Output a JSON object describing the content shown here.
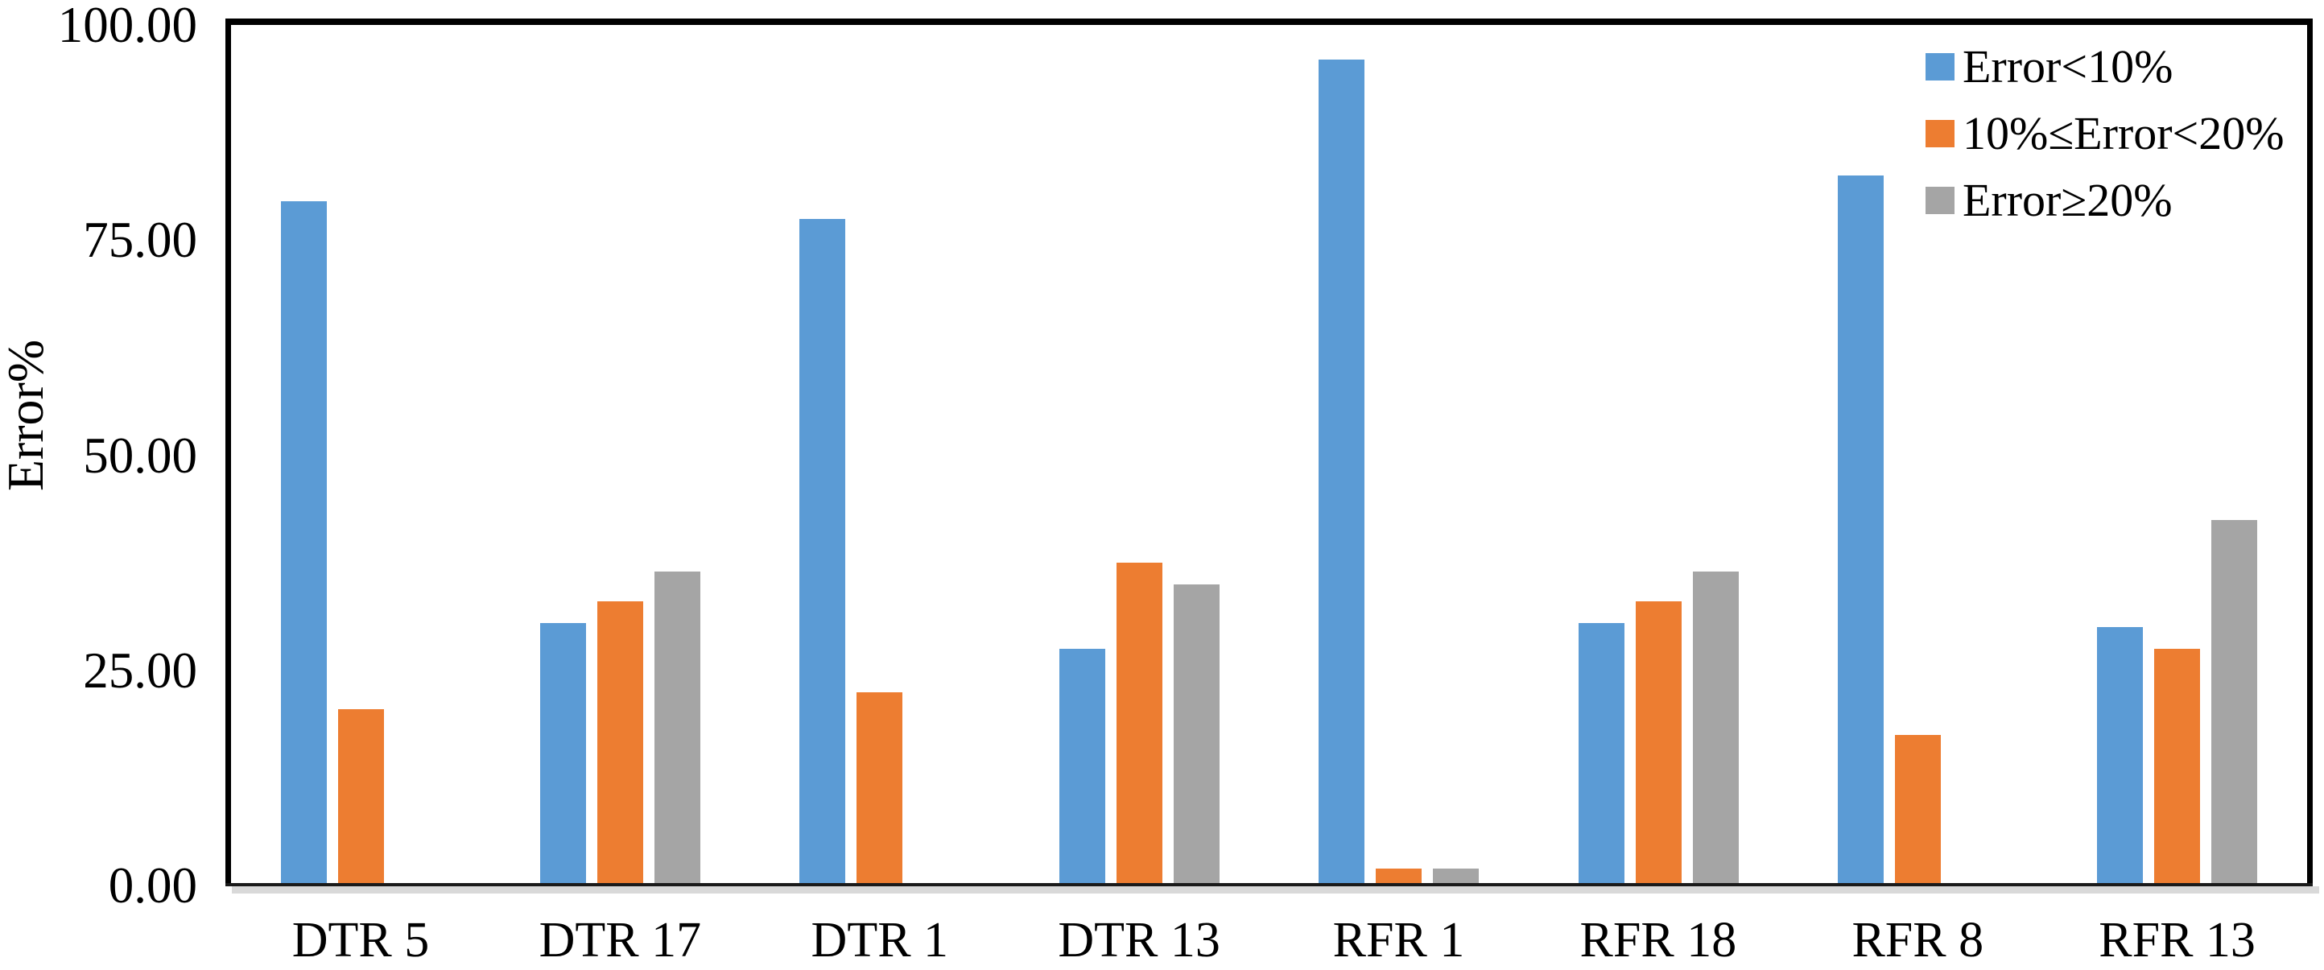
{
  "chart_data": {
    "type": "bar",
    "title": "",
    "xlabel": "",
    "ylabel": "Error%",
    "ylim": [
      0,
      100
    ],
    "grid": false,
    "legend_position": "top-right-inside",
    "categories": [
      "DTR 5",
      "DTR 17",
      "DTR 1",
      "DTR 13",
      "RFR 1",
      "RFR 18",
      "RFR 8",
      "RFR 13"
    ],
    "series": [
      {
        "name": "Error<10%",
        "color": "#5B9BD5",
        "values": [
          79.5,
          30.5,
          77.5,
          27.5,
          96.0,
          30.5,
          82.5,
          30.0
        ]
      },
      {
        "name": "10%≤Error<20%",
        "color": "#ED7D31",
        "values": [
          20.5,
          33.0,
          22.5,
          37.5,
          2.0,
          33.0,
          17.5,
          27.5
        ]
      },
      {
        "name": "Error≥20%",
        "color": "#A5A5A5",
        "values": [
          0.0,
          36.5,
          0.0,
          35.0,
          2.0,
          36.5,
          0.0,
          42.5
        ]
      }
    ],
    "yticks": [
      {
        "value": 0,
        "label": "0.00"
      },
      {
        "value": 25,
        "label": "25.00"
      },
      {
        "value": 50,
        "label": "50.00"
      },
      {
        "value": 75,
        "label": "75.00"
      },
      {
        "value": 100,
        "label": "100.00"
      }
    ]
  },
  "colors": {
    "background": "#FFFFFF",
    "frame_border": "#000000",
    "baseline": "#1A1A1A",
    "baseline_shadow": "#D9D9D9",
    "text": "#000000"
  }
}
